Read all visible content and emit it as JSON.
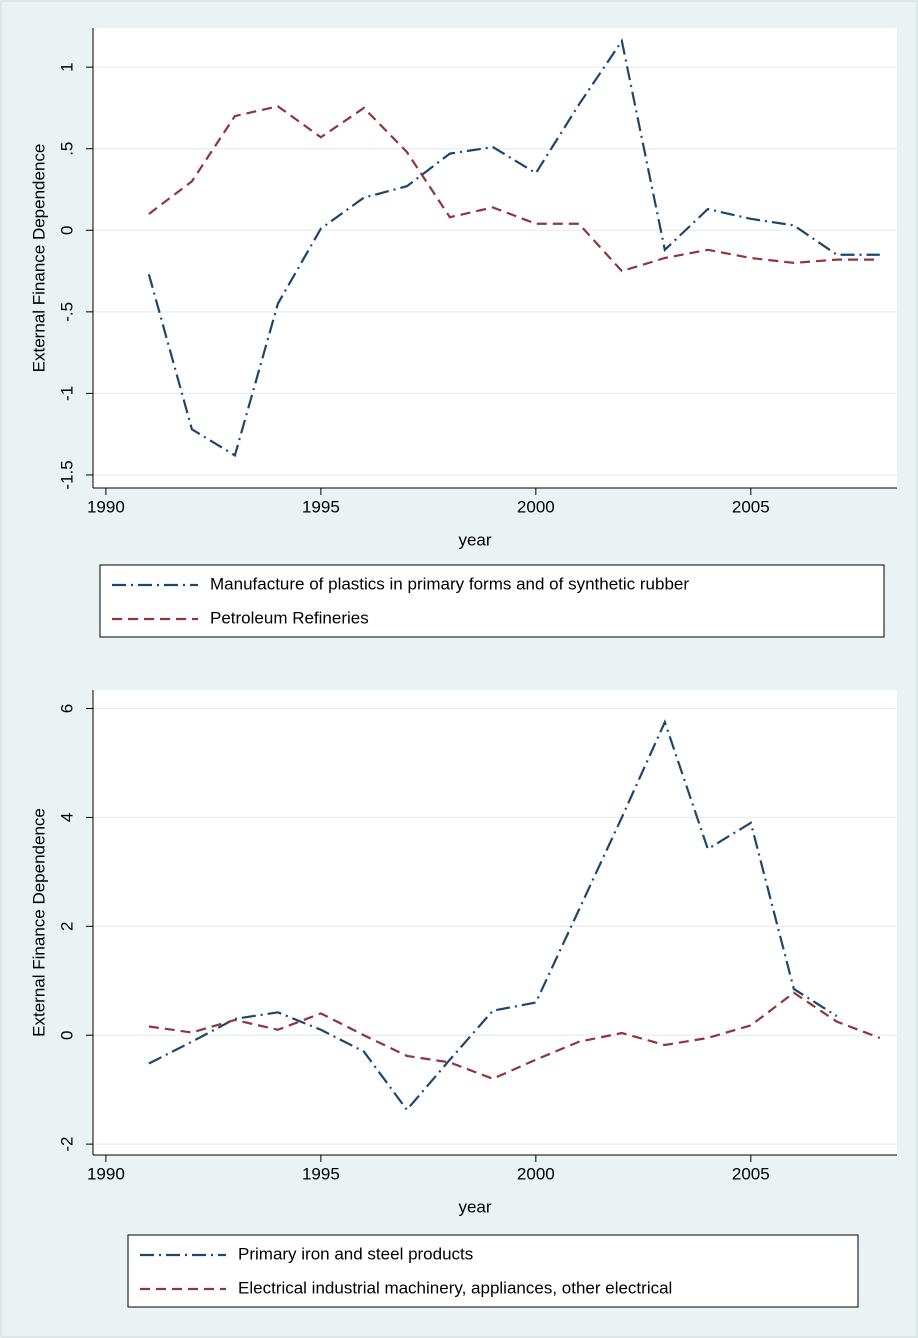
{
  "chart_data": [
    {
      "type": "line",
      "x_label": "year",
      "y_label": "External Finance Dependence",
      "x": [
        1991,
        1992,
        1993,
        1994,
        1995,
        1996,
        1997,
        1998,
        1999,
        2000,
        2001,
        2002,
        2003,
        2004,
        2005,
        2006,
        2007,
        2008
      ],
      "series": [
        {
          "name": "Manufacture of plastics in primary forms and of synthetic rubber",
          "color": "#1a476f",
          "dash": "dash-dot",
          "values": [
            -0.27,
            -1.22,
            -1.38,
            -0.45,
            0.01,
            0.2,
            0.27,
            0.47,
            0.51,
            0.35,
            0.77,
            1.16,
            -0.12,
            0.13,
            0.07,
            0.03,
            -0.15,
            -0.15
          ]
        },
        {
          "name": "Petroleum Refineries",
          "color": "#90353b",
          "dash": "dash",
          "values": [
            0.1,
            0.3,
            0.7,
            0.76,
            0.57,
            0.75,
            0.48,
            0.08,
            0.14,
            0.04,
            0.04,
            -0.25,
            -0.17,
            -0.12,
            -0.17,
            -0.2,
            -0.18,
            -0.18
          ]
        }
      ],
      "xlim": [
        1989.7,
        2008.4
      ],
      "xticks": [
        1990,
        1995,
        2000,
        2005
      ],
      "ylim": [
        -1.58,
        1.24
      ],
      "yticks": [
        1,
        {
          "value": 0.5,
          "label": ".5"
        },
        0,
        {
          "value": -0.5,
          "label": "-.5"
        },
        -1,
        -1.5
      ],
      "grid": true,
      "legend": "bottom"
    },
    {
      "type": "line",
      "x_label": "year",
      "y_label": "External Finance Dependence",
      "x": [
        1991,
        1992,
        1993,
        1994,
        1995,
        1996,
        1997,
        1998,
        1999,
        2000,
        2001,
        2002,
        2003,
        2004,
        2005,
        2006,
        2007,
        2008
      ],
      "series": [
        {
          "name": "Primary iron and steel products",
          "color": "#1a476f",
          "dash": "dash-dot",
          "values": [
            -0.52,
            -0.12,
            0.3,
            0.42,
            0.1,
            -0.3,
            -1.37,
            -0.45,
            0.45,
            0.6,
            2.3,
            4.0,
            5.75,
            3.42,
            3.9,
            0.85,
            0.35,
            null
          ]
        },
        {
          "name": "Electrical industrial machinery, appliances, other electrical",
          "color": "#90353b",
          "dash": "dash",
          "values": [
            0.16,
            0.05,
            0.28,
            0.1,
            0.4,
            0.0,
            -0.38,
            -0.5,
            -0.8,
            -0.45,
            -0.12,
            0.04,
            -0.18,
            -0.05,
            0.18,
            0.78,
            0.25,
            -0.05
          ]
        }
      ],
      "xlim": [
        1989.7,
        2008.4
      ],
      "xticks": [
        1990,
        1995,
        2000,
        2005
      ],
      "ylim": [
        -2.2,
        6.34
      ],
      "yticks": [
        6,
        4,
        2,
        0,
        -2
      ],
      "grid": true,
      "legend": "bottom"
    }
  ]
}
